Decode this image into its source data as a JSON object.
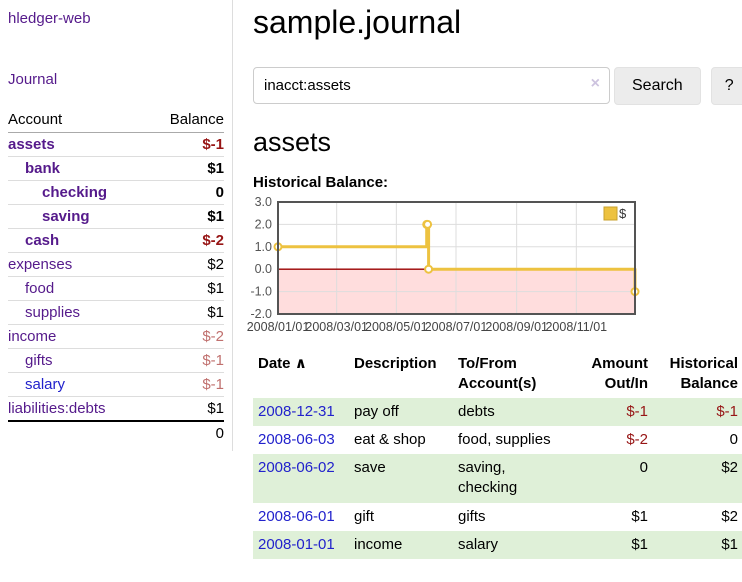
{
  "app": {
    "brand": "hledger-web"
  },
  "icons": {
    "clear": "×",
    "sort_asc": "∧"
  },
  "sidebar": {
    "journal_label": "Journal",
    "accounts_table": {
      "headers": [
        "Account",
        "Balance"
      ],
      "rows": [
        {
          "account": "assets",
          "indent": 1,
          "bold": true,
          "balance": "$-1"
        },
        {
          "account": "bank",
          "indent": 2,
          "bold": true,
          "balance": "$1"
        },
        {
          "account": "checking",
          "indent": 3,
          "bold": true,
          "balance": "0"
        },
        {
          "account": "saving",
          "indent": 3,
          "bold": true,
          "balance": "$1"
        },
        {
          "account": "cash",
          "indent": 2,
          "bold": true,
          "balance": "$-2"
        },
        {
          "account": "expenses",
          "indent": 1,
          "bold": false,
          "balance": "$2"
        },
        {
          "account": "food",
          "indent": 2,
          "bold": false,
          "balance": "$1"
        },
        {
          "account": "supplies",
          "indent": 2,
          "bold": false,
          "balance": "$1"
        },
        {
          "account": "income",
          "indent": 1,
          "bold": false,
          "balance": "$-2"
        },
        {
          "account": "gifts",
          "indent": 2,
          "bold": false,
          "balance": "$-1"
        },
        {
          "account": "salary",
          "indent": 2,
          "bold": false,
          "balance": "$-1",
          "blue": true
        },
        {
          "account": "liabilities:debts",
          "indent": 1,
          "bold": false,
          "balance": "$1"
        }
      ],
      "total": "0"
    }
  },
  "main": {
    "title": "sample.journal",
    "search": {
      "value": "inacct:assets",
      "search_label": "Search",
      "help_label": "?"
    },
    "account_heading": "assets",
    "chart_heading": "Historical Balance:"
  },
  "chart_data": {
    "type": "line",
    "step": true,
    "title": "Historical Balance",
    "legend": "$",
    "legend_position": "top-right",
    "series": [
      {
        "name": "$",
        "color": "#edc240",
        "points": [
          [
            "2008-01-01",
            1
          ],
          [
            "2008-06-01",
            2
          ],
          [
            "2008-06-02",
            2
          ],
          [
            "2008-06-03",
            0
          ],
          [
            "2008-12-31",
            -1
          ]
        ]
      }
    ],
    "xlim": [
      "2008-01-01",
      "2008-12-31"
    ],
    "ylim": [
      -2,
      3
    ],
    "yticks": [
      3.0,
      2.0,
      1.0,
      0.0,
      -1.0,
      -2.0
    ],
    "xticks": [
      {
        "date": "2008-01-01",
        "label": "2008/01/01"
      },
      {
        "date": "2008-03-01",
        "label": "2008/03/01"
      },
      {
        "date": "2008-05-01",
        "label": "2008/05/01"
      },
      {
        "date": "2008-07-01",
        "label": "2008/07/01"
      },
      {
        "date": "2008-09-01",
        "label": "2008/09/01"
      },
      {
        "date": "2008-11-01",
        "label": "2008/11/01"
      }
    ],
    "grid": true,
    "grid_color": "#dddddd",
    "border_color": "#545454",
    "zero_line_color": "#990000",
    "negative_fill": "#ffdddd",
    "legend_swatch_border": "#c9a22c"
  },
  "register_table": {
    "headers": [
      {
        "lines": [
          "Date"
        ],
        "name": "date-header",
        "sortable": true
      },
      {
        "lines": [
          "Description"
        ],
        "name": "description-header"
      },
      {
        "lines": [
          "To/From",
          "Account(s)"
        ],
        "name": "accounts-header"
      },
      {
        "lines": [
          "Amount",
          "Out/In"
        ],
        "name": "amount-header",
        "align": "right"
      },
      {
        "lines": [
          "Historical",
          "Balance"
        ],
        "name": "balance-header",
        "align": "right"
      }
    ],
    "rows": [
      {
        "date": "2008-12-31",
        "description": "pay off",
        "accounts": "debts",
        "amount": "$-1",
        "balance": "$-1"
      },
      {
        "date": "2008-06-03",
        "description": "eat & shop",
        "accounts": "food, supplies",
        "amount": "$-2",
        "balance": "0"
      },
      {
        "date": "2008-06-02",
        "description": "save",
        "accounts": "saving, checking",
        "amount": "0",
        "balance": "$2"
      },
      {
        "date": "2008-06-01",
        "description": "gift",
        "accounts": "gifts",
        "amount": "$1",
        "balance": "$2"
      },
      {
        "date": "2008-01-01",
        "description": "income",
        "accounts": "salary",
        "amount": "$1",
        "balance": "$1"
      }
    ]
  }
}
